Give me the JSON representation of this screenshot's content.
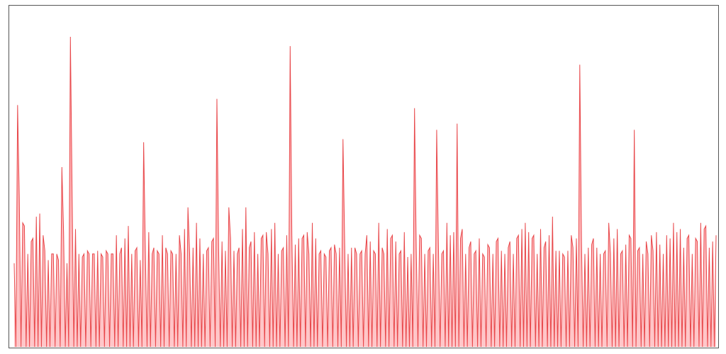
{
  "chart_data": {
    "type": "line",
    "title": "",
    "xlabel": "",
    "ylabel": "",
    "grid": false,
    "legend": "none",
    "ylim": [
      0,
      100
    ],
    "series": [
      {
        "color": "#e8474a",
        "fill": "#ff9a9e",
        "values": [
          27,
          0,
          78,
          48,
          0,
          40,
          39,
          0,
          30,
          0,
          34,
          35,
          0,
          42,
          0,
          43,
          0,
          36,
          31,
          0,
          28,
          0,
          30,
          30,
          0,
          30,
          28,
          0,
          58,
          37,
          0,
          27,
          0,
          100,
          50,
          0,
          38,
          0,
          30,
          0,
          29,
          30,
          0,
          31,
          30,
          0,
          30,
          30,
          0,
          31,
          0,
          30,
          29,
          0,
          31,
          30,
          0,
          30,
          30,
          0,
          36,
          0,
          30,
          32,
          0,
          35,
          0,
          39,
          0,
          30,
          0,
          31,
          32,
          0,
          28,
          0,
          66,
          31,
          0,
          37,
          0,
          30,
          32,
          0,
          31,
          30,
          0,
          36,
          0,
          32,
          30,
          0,
          31,
          30,
          0,
          30,
          0,
          36,
          30,
          0,
          38,
          0,
          45,
          30,
          0,
          32,
          0,
          40,
          0,
          35,
          0,
          30,
          0,
          31,
          32,
          0,
          34,
          35,
          0,
          80,
          32,
          0,
          34,
          0,
          31,
          0,
          45,
          35,
          0,
          31,
          0,
          30,
          32,
          0,
          38,
          0,
          45,
          0,
          32,
          34,
          0,
          37,
          0,
          30,
          0,
          35,
          36,
          0,
          37,
          30,
          0,
          38,
          0,
          40,
          0,
          30,
          0,
          31,
          32,
          0,
          36,
          0,
          97,
          36,
          0,
          33,
          0,
          35,
          0,
          35,
          36,
          0,
          37,
          30,
          0,
          40,
          0,
          35,
          0,
          30,
          31,
          0,
          30,
          29,
          0,
          31,
          32,
          0,
          33,
          30,
          0,
          32,
          0,
          67,
          33,
          0,
          30,
          0,
          32,
          0,
          32,
          30,
          0,
          30,
          31,
          0,
          30,
          36,
          0,
          34,
          0,
          31,
          30,
          0,
          40,
          0,
          32,
          30,
          0,
          38,
          0,
          35,
          36,
          0,
          34,
          0,
          30,
          31,
          0,
          37,
          0,
          29,
          0,
          30,
          0,
          77,
          32,
          0,
          36,
          35,
          0,
          30,
          0,
          31,
          32,
          0,
          30,
          0,
          70,
          33,
          0,
          30,
          31,
          0,
          40,
          0,
          36,
          0,
          37,
          0,
          72,
          0,
          35,
          38,
          0,
          30,
          0,
          32,
          34,
          0,
          30,
          31,
          0,
          35,
          0,
          30,
          29,
          0,
          33,
          32,
          0,
          30,
          0,
          34,
          35,
          0,
          31,
          0,
          30,
          0,
          32,
          34,
          0,
          30,
          0,
          35,
          36,
          0,
          38,
          0,
          40,
          0,
          37,
          0,
          35,
          36,
          0,
          30,
          0,
          38,
          0,
          32,
          34,
          0,
          36,
          0,
          42,
          0,
          31,
          0,
          31,
          0,
          30,
          29,
          0,
          31,
          0,
          36,
          32,
          0,
          35,
          0,
          91,
          34,
          0,
          30,
          0,
          32,
          0,
          33,
          35,
          0,
          32,
          0,
          30,
          0,
          30,
          31,
          0,
          40,
          30,
          0,
          35,
          0,
          38,
          0,
          30,
          31,
          0,
          33,
          0,
          36,
          35,
          0,
          70,
          0,
          31,
          32,
          0,
          30,
          0,
          34,
          30,
          0,
          36,
          31,
          0,
          37,
          0,
          33,
          0,
          30,
          0,
          36,
          0,
          35,
          0,
          40,
          0,
          37,
          0,
          38,
          0,
          32,
          0,
          35,
          36,
          0,
          30,
          0,
          35,
          34,
          0,
          40,
          0,
          38,
          39,
          0,
          32,
          0,
          34,
          0,
          36
        ]
      }
    ]
  }
}
